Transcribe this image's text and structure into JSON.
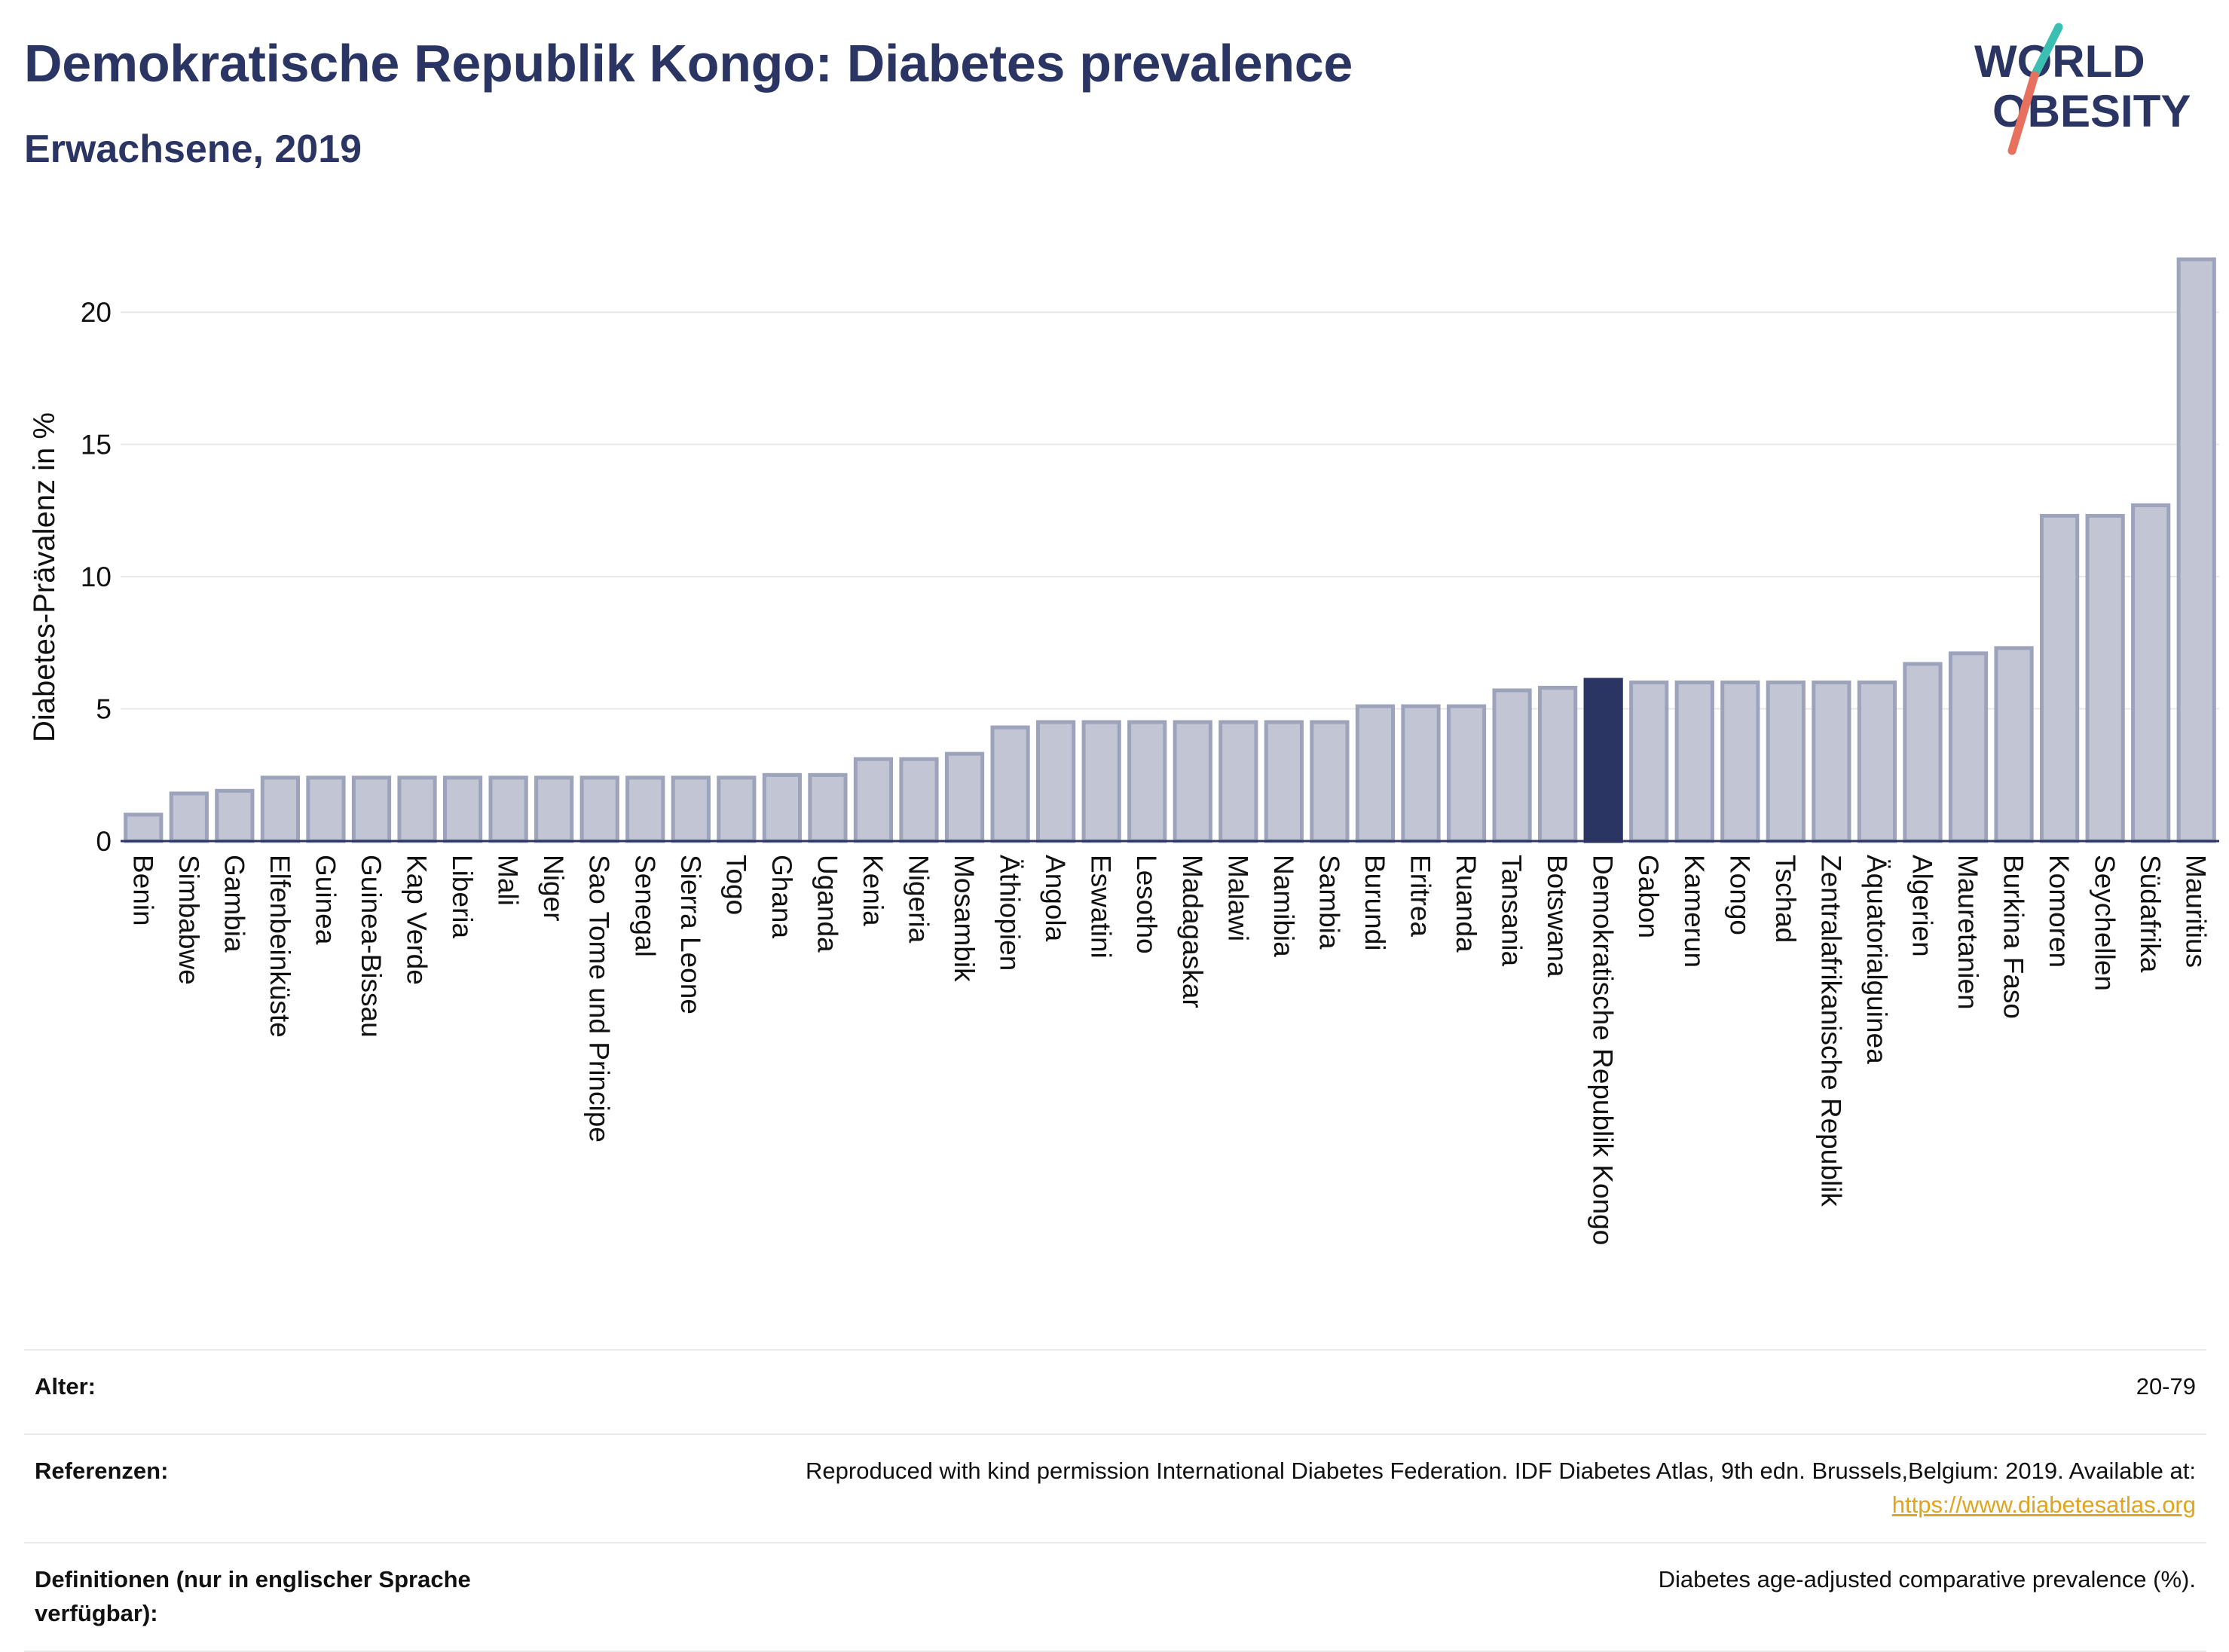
{
  "header": {
    "title": "Demokratische Republik Kongo: Diabetes prevalence",
    "subtitle": "Erwachsene, 2019"
  },
  "logo": {
    "line1": "WORLD",
    "line2": "OBESITY",
    "colors": {
      "text": "#2b3564",
      "slash_teal": "#3bbfb2",
      "slash_coral": "#e8705f"
    }
  },
  "chart_data": {
    "type": "bar",
    "title": "Demokratische Republik Kongo: Diabetes prevalence",
    "subtitle": "Erwachsene, 2019",
    "xlabel": "",
    "ylabel": "Diabetes-Prävalenz in %",
    "ylim": [
      0,
      22.8
    ],
    "yticks": [
      0,
      5,
      10,
      15,
      20
    ],
    "grid": true,
    "highlight": "Demokratische Republik Kongo",
    "colors": {
      "bar": "#c1c5d4",
      "bar_edge": "#9da3bb",
      "highlight": "#2b3564",
      "grid": "#e8e8e8",
      "axis": "#2b3564"
    },
    "categories": [
      "Benin",
      "Simbabwe",
      "Gambia",
      "Elfenbeinküste",
      "Guinea",
      "Guinea-Bissau",
      "Kap Verde",
      "Liberia",
      "Mali",
      "Niger",
      "Sao Tome und Principe",
      "Senegal",
      "Sierra Leone",
      "Togo",
      "Ghana",
      "Uganda",
      "Kenia",
      "Nigeria",
      "Mosambik",
      "Äthiopien",
      "Angola",
      "Eswatini",
      "Lesotho",
      "Madagaskar",
      "Malawi",
      "Namibia",
      "Sambia",
      "Burundi",
      "Eritrea",
      "Ruanda",
      "Tansania",
      "Botswana",
      "Demokratische Republik Kongo",
      "Gabon",
      "Kamerun",
      "Kongo",
      "Tschad",
      "Zentralafrikanische Republik",
      "Äquatorialguinea",
      "Algerien",
      "Mauretanien",
      "Burkina Faso",
      "Komoren",
      "Seychellen",
      "Südafrika",
      "Mauritius"
    ],
    "values": [
      1.0,
      1.8,
      1.9,
      2.4,
      2.4,
      2.4,
      2.4,
      2.4,
      2.4,
      2.4,
      2.4,
      2.4,
      2.4,
      2.4,
      2.5,
      2.5,
      3.1,
      3.1,
      3.3,
      4.3,
      4.5,
      4.5,
      4.5,
      4.5,
      4.5,
      4.5,
      4.5,
      5.1,
      5.1,
      5.1,
      5.7,
      5.8,
      6.1,
      6.0,
      6.0,
      6.0,
      6.0,
      6.0,
      6.0,
      6.7,
      7.1,
      7.3,
      12.3,
      12.3,
      12.7,
      22.0
    ]
  },
  "info": {
    "age_label": "Alter:",
    "age_value": "20-79",
    "references_label": "Referenzen:",
    "references_text": "Reproduced with kind permission International Diabetes Federation. IDF Diabetes Atlas, 9th edn. Brussels,Belgium: 2019. Available at:",
    "references_link": "https://www.diabetesatlas.org",
    "definitions_label": "Definitionen (nur in englischer Sprache verfügbar):",
    "definitions_value": "Diabetes age-adjusted comparative prevalence (%)."
  }
}
